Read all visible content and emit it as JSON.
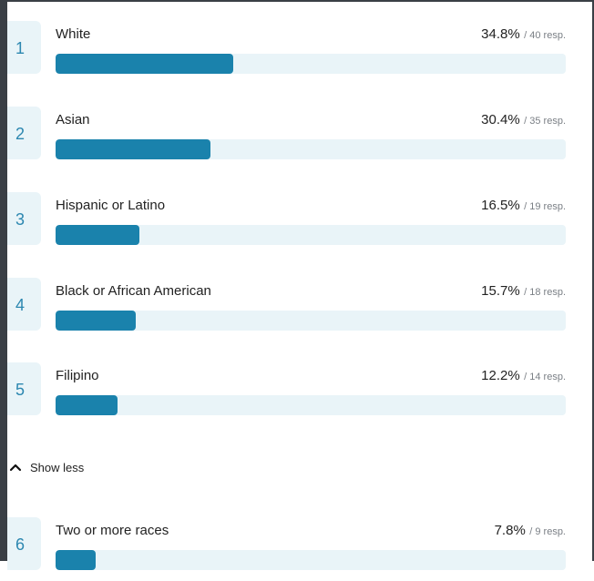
{
  "items": [
    {
      "rank": "1",
      "label": "White",
      "percent": "34.8%",
      "responses": "/ 40 resp.",
      "fraction": 0.348
    },
    {
      "rank": "2",
      "label": "Asian",
      "percent": "30.4%",
      "responses": "/ 35 resp.",
      "fraction": 0.304
    },
    {
      "rank": "3",
      "label": "Hispanic or Latino",
      "percent": "16.5%",
      "responses": "/ 19 resp.",
      "fraction": 0.165
    },
    {
      "rank": "4",
      "label": "Black or African American",
      "percent": "15.7%",
      "responses": "/ 18 resp.",
      "fraction": 0.157
    },
    {
      "rank": "5",
      "label": "Filipino",
      "percent": "12.2%",
      "responses": "/ 14 resp.",
      "fraction": 0.122
    }
  ],
  "toggle": {
    "label": "Show less",
    "icon": "chevron-up-icon"
  },
  "extra_items": [
    {
      "rank": "6",
      "label": "Two or more races",
      "percent": "7.8%",
      "responses": "/ 9 resp.",
      "fraction": 0.078
    }
  ],
  "colors": {
    "bar_fill": "#1a82ac",
    "bar_track": "#e9f4f8",
    "rank_text": "#2c87b0"
  }
}
